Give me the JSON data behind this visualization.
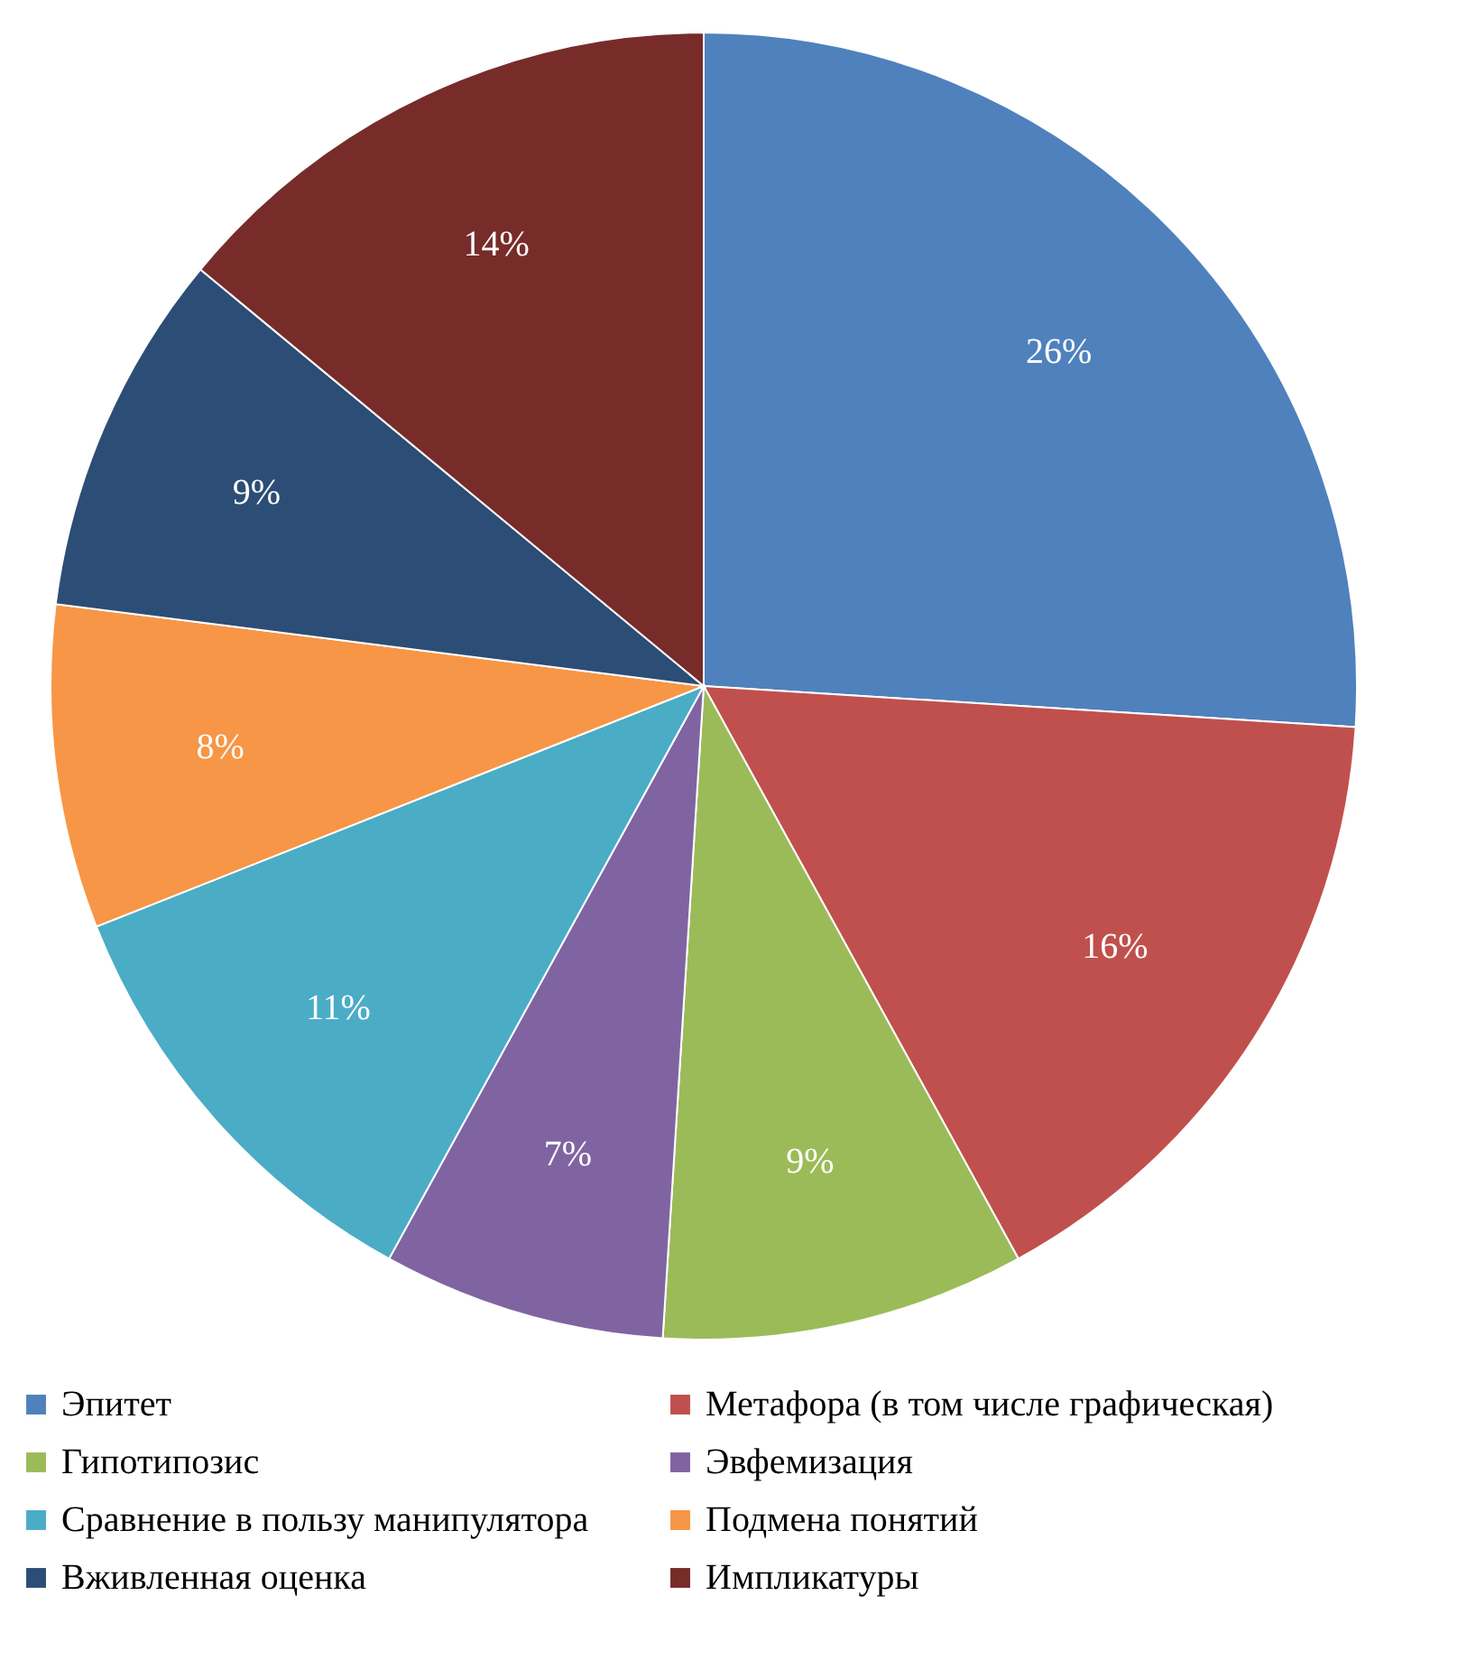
{
  "chart_data": {
    "type": "pie",
    "categories": [
      "Эпитет",
      "Метафора (в том числе графическая)",
      "Гипотипозис",
      "Эвфемизация",
      "Сравнение в пользу манипулятора",
      "Подмена понятий",
      "Вживленная оценка",
      "Импликатуры"
    ],
    "values": [
      26,
      16,
      9,
      7,
      11,
      8,
      9,
      14
    ],
    "value_labels": [
      "26%",
      "16%",
      "9%",
      "7%",
      "11%",
      "8%",
      "9%",
      "14%"
    ],
    "colors": [
      "#4f81bd",
      "#c0504d",
      "#9bbb59",
      "#8064a2",
      "#4bacc6",
      "#f79646",
      "#2c4d75",
      "#772c2a"
    ],
    "legend": "bottom"
  }
}
